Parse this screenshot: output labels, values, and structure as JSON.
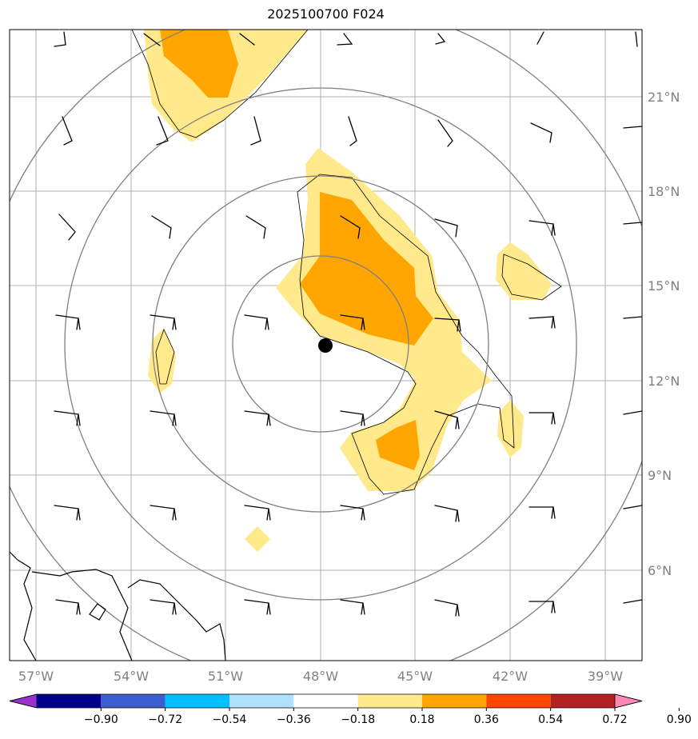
{
  "title": "2025100700 F024",
  "map": {
    "lon_labels": [
      "57°W",
      "54°W",
      "51°W",
      "48°W",
      "45°W",
      "42°W",
      "39°W"
    ],
    "lat_labels": [
      "21°N",
      "18°N",
      "15°N",
      "12°N",
      "9°N",
      "6°N"
    ],
    "storm_center": {
      "lon": -48,
      "lat": 13
    },
    "colors": {
      "light_yellow": "#ffe98a",
      "orange": "#ffa500",
      "ring": "#808080",
      "grid": "#b0b0b0"
    }
  },
  "colorbar": {
    "labels": [
      "−0.90",
      "−0.72",
      "−0.54",
      "−0.36",
      "−0.18",
      "0.18",
      "0.36",
      "0.54",
      "0.72",
      "0.90"
    ],
    "colors": [
      "#9b30d0",
      "#00008b",
      "#3a5fcd",
      "#00bfff",
      "#b0e0ff",
      "#ffffff",
      "#ffe98a",
      "#ffa500",
      "#ff4500",
      "#b22222",
      "#ff88b4"
    ]
  }
}
